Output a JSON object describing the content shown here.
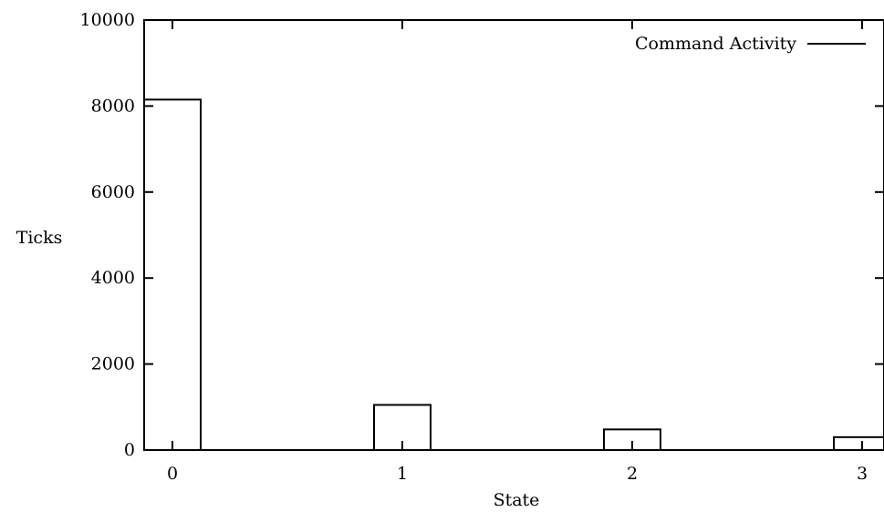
{
  "chart_data": {
    "type": "bar",
    "title": "",
    "xlabel": "State",
    "ylabel": "Ticks",
    "categories": [
      "0",
      "1",
      "2",
      "3"
    ],
    "series": [
      {
        "name": "Command Activity",
        "values": [
          8150,
          1050,
          480,
          300
        ]
      }
    ],
    "x_ticks": [
      "0",
      "1",
      "2",
      "3"
    ],
    "y_ticks": [
      "0",
      "2000",
      "4000",
      "6000",
      "8000",
      "10000"
    ],
    "ylim": [
      0,
      10000
    ],
    "grid": false,
    "legend_position": "top-right",
    "bar_style": "outline",
    "colors": {
      "stroke": "#000000",
      "background": "#ffffff"
    }
  }
}
